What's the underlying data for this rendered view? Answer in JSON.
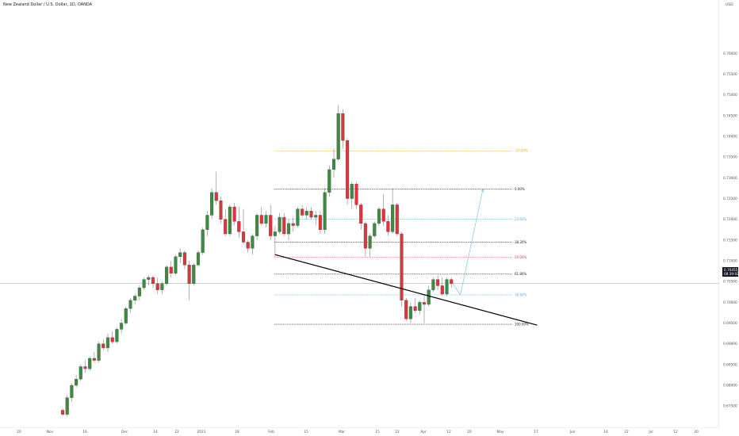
{
  "title": "New Zealand Dollar / U.S. Dollar, 1D, OANDA",
  "currency": "USD",
  "price_label": "0.70455",
  "countdown_label": "08:39:02",
  "colors": {
    "up": "#3d8b40",
    "down": "#e2323c",
    "current_price_line": "#9598a1",
    "trendline": "#000000",
    "arrow": "#7ec3ea",
    "axis_text": "#50535e"
  },
  "chart_data": {
    "type": "candlestick",
    "ylim": [
      0.6725,
      0.77
    ],
    "y_ticks": [
      "0.67500",
      "0.68000",
      "0.68500",
      "0.69000",
      "0.69500",
      "0.70000",
      "0.70500",
      "0.71000",
      "0.71500",
      "0.72000",
      "0.72500",
      "0.73000",
      "0.73500",
      "0.74000",
      "0.74500",
      "0.75000",
      "0.75500",
      "0.76000"
    ],
    "x_ticks": [
      "20",
      "Nov",
      "16",
      "Dec",
      "14",
      "22",
      "2021",
      "18",
      "Feb",
      "15",
      "Mar",
      "15",
      "22",
      "Apr",
      "12",
      "20",
      "May",
      "17",
      "Jun",
      "14",
      "22",
      "Jul",
      "12",
      "20"
    ],
    "current_price": 0.70455,
    "candles": [
      [
        0.674,
        0.6745,
        0.6725,
        0.673
      ],
      [
        0.673,
        0.6775,
        0.6725,
        0.677
      ],
      [
        0.677,
        0.6805,
        0.676,
        0.68
      ],
      [
        0.68,
        0.6825,
        0.6795,
        0.6815
      ],
      [
        0.6815,
        0.685,
        0.681,
        0.6845
      ],
      [
        0.6845,
        0.686,
        0.683,
        0.684
      ],
      [
        0.684,
        0.687,
        0.6835,
        0.6865
      ],
      [
        0.6865,
        0.688,
        0.6855,
        0.686
      ],
      [
        0.686,
        0.6905,
        0.6855,
        0.69
      ],
      [
        0.69,
        0.691,
        0.6885,
        0.689
      ],
      [
        0.689,
        0.6925,
        0.688,
        0.6915
      ],
      [
        0.6915,
        0.693,
        0.69,
        0.6905
      ],
      [
        0.6905,
        0.694,
        0.69,
        0.6935
      ],
      [
        0.6935,
        0.696,
        0.6925,
        0.695
      ],
      [
        0.695,
        0.699,
        0.6945,
        0.6985
      ],
      [
        0.6985,
        0.701,
        0.6975,
        0.7005
      ],
      [
        0.7005,
        0.702,
        0.6995,
        0.7015
      ],
      [
        0.7015,
        0.704,
        0.7005,
        0.7035
      ],
      [
        0.7035,
        0.706,
        0.703,
        0.7055
      ],
      [
        0.7055,
        0.7065,
        0.704,
        0.706
      ],
      [
        0.706,
        0.7065,
        0.7035,
        0.7045
      ],
      [
        0.7045,
        0.706,
        0.702,
        0.703
      ],
      [
        0.703,
        0.705,
        0.702,
        0.7045
      ],
      [
        0.7045,
        0.709,
        0.704,
        0.7085
      ],
      [
        0.7085,
        0.71,
        0.706,
        0.707
      ],
      [
        0.707,
        0.7115,
        0.7065,
        0.711
      ],
      [
        0.711,
        0.713,
        0.7095,
        0.712
      ],
      [
        0.712,
        0.7125,
        0.708,
        0.709
      ],
      [
        0.709,
        0.71,
        0.7005,
        0.7045
      ],
      [
        0.7045,
        0.7095,
        0.704,
        0.709
      ],
      [
        0.709,
        0.7125,
        0.7085,
        0.712
      ],
      [
        0.712,
        0.718,
        0.7115,
        0.7175
      ],
      [
        0.7175,
        0.722,
        0.716,
        0.721
      ],
      [
        0.721,
        0.7275,
        0.72,
        0.7265
      ],
      [
        0.7265,
        0.7315,
        0.7235,
        0.7245
      ],
      [
        0.7245,
        0.7255,
        0.719,
        0.72
      ],
      [
        0.72,
        0.7225,
        0.716,
        0.7165
      ],
      [
        0.7165,
        0.7235,
        0.716,
        0.723
      ],
      [
        0.723,
        0.724,
        0.7185,
        0.7195
      ],
      [
        0.7195,
        0.723,
        0.7155,
        0.717
      ],
      [
        0.717,
        0.7225,
        0.714,
        0.7145
      ],
      [
        0.7145,
        0.715,
        0.712,
        0.713
      ],
      [
        0.713,
        0.7165,
        0.7115,
        0.716
      ],
      [
        0.716,
        0.7215,
        0.715,
        0.721
      ],
      [
        0.721,
        0.723,
        0.7185,
        0.719
      ],
      [
        0.719,
        0.722,
        0.718,
        0.721
      ],
      [
        0.721,
        0.7235,
        0.715,
        0.716
      ],
      [
        0.716,
        0.7185,
        0.711,
        0.717
      ],
      [
        0.717,
        0.7215,
        0.7165,
        0.7205
      ],
      [
        0.7205,
        0.7215,
        0.716,
        0.7165
      ],
      [
        0.7165,
        0.72,
        0.715,
        0.719
      ],
      [
        0.719,
        0.7205,
        0.717,
        0.7185
      ],
      [
        0.7185,
        0.723,
        0.718,
        0.7225
      ],
      [
        0.7225,
        0.7235,
        0.7205,
        0.721
      ],
      [
        0.721,
        0.723,
        0.72,
        0.722
      ],
      [
        0.722,
        0.723,
        0.72,
        0.7205
      ],
      [
        0.7205,
        0.722,
        0.7185,
        0.721
      ],
      [
        0.721,
        0.722,
        0.7165,
        0.7175
      ],
      [
        0.7175,
        0.7275,
        0.7165,
        0.7265
      ],
      [
        0.7265,
        0.733,
        0.7255,
        0.732
      ],
      [
        0.732,
        0.737,
        0.73,
        0.7345
      ],
      [
        0.7345,
        0.7475,
        0.734,
        0.7455
      ],
      [
        0.7455,
        0.7465,
        0.737,
        0.739
      ],
      [
        0.739,
        0.7395,
        0.7235,
        0.725
      ],
      [
        0.725,
        0.729,
        0.7225,
        0.7285
      ],
      [
        0.7285,
        0.729,
        0.7225,
        0.7235
      ],
      [
        0.7235,
        0.724,
        0.7175,
        0.719
      ],
      [
        0.719,
        0.7195,
        0.711,
        0.713
      ],
      [
        0.713,
        0.7165,
        0.711,
        0.716
      ],
      [
        0.716,
        0.7195,
        0.7155,
        0.719
      ],
      [
        0.719,
        0.723,
        0.7185,
        0.7225
      ],
      [
        0.7225,
        0.726,
        0.7185,
        0.7195
      ],
      [
        0.7195,
        0.721,
        0.716,
        0.717
      ],
      [
        0.717,
        0.7275,
        0.7165,
        0.7235
      ],
      [
        0.7235,
        0.724,
        0.716,
        0.7165
      ],
      [
        0.7165,
        0.717,
        0.699,
        0.7005
      ],
      [
        0.7005,
        0.701,
        0.6955,
        0.696
      ],
      [
        0.696,
        0.7,
        0.695,
        0.699
      ],
      [
        0.699,
        0.701,
        0.6975,
        0.698
      ],
      [
        0.698,
        0.7005,
        0.697,
        0.7
      ],
      [
        0.7,
        0.702,
        0.695,
        0.6995
      ],
      [
        0.6995,
        0.704,
        0.699,
        0.703
      ],
      [
        0.703,
        0.706,
        0.7025,
        0.7055
      ],
      [
        0.7055,
        0.7065,
        0.703,
        0.704
      ],
      [
        0.704,
        0.706,
        0.7015,
        0.702
      ],
      [
        0.702,
        0.706,
        0.7015,
        0.7055
      ],
      [
        0.7055,
        0.706,
        0.7035,
        0.7045
      ]
    ],
    "fibonacci": [
      {
        "label": "-27.00%",
        "price": 0.7365,
        "color": "#f5a623"
      },
      {
        "label": "0.00%",
        "price": 0.7273,
        "color": "#131722"
      },
      {
        "label": "23.60%",
        "price": 0.72,
        "color": "#4fb0e6"
      },
      {
        "label": "38.20%",
        "price": 0.7145,
        "color": "#131722"
      },
      {
        "label": "50.00%",
        "price": 0.7108,
        "color": "#e2323c"
      },
      {
        "label": "61.80%",
        "price": 0.7068,
        "color": "#131722"
      },
      {
        "label": "78.60%",
        "price": 0.7018,
        "color": "#4fb0e6"
      },
      {
        "label": "100.00%",
        "price": 0.6947,
        "color": "#131722"
      }
    ],
    "trendline": [
      [
        0.7115,
        47
      ],
      [
        0.6945,
        105
      ]
    ],
    "projection": [
      [
        0.7018,
        88
      ],
      [
        0.7273,
        93
      ]
    ]
  }
}
